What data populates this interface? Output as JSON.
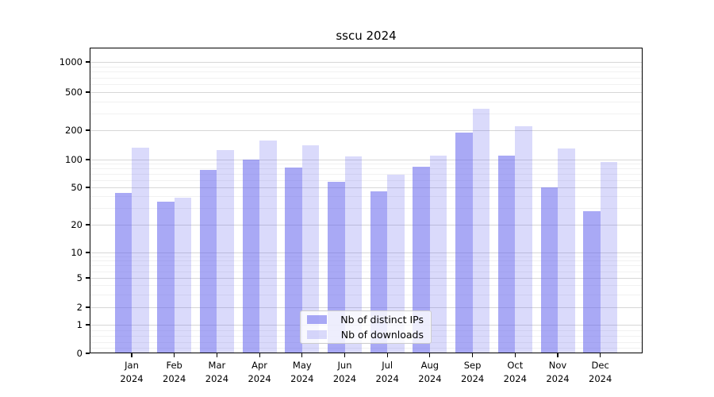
{
  "chart_data": {
    "type": "bar",
    "title": "sscu 2024",
    "year_label": "2024",
    "categories": [
      "Jan",
      "Feb",
      "Mar",
      "Apr",
      "May",
      "Jun",
      "Jul",
      "Aug",
      "Sep",
      "Oct",
      "Nov",
      "Dec"
    ],
    "series": [
      {
        "name": "Nb of distinct IPs",
        "color": "rgba(102,102,238,0.56)",
        "values": [
          44,
          35,
          78,
          100,
          82,
          58,
          45,
          84,
          190,
          110,
          50,
          28
        ]
      },
      {
        "name": "Nb of downloads",
        "color": "rgba(102,102,238,0.24)",
        "values": [
          132,
          39,
          126,
          158,
          141,
          108,
          69,
          110,
          335,
          220,
          131,
          94
        ]
      }
    ],
    "yscale": "symlog",
    "y_ticks": [
      1000,
      500,
      200,
      100,
      50,
      20,
      10,
      5,
      2,
      1,
      0
    ],
    "ylim": [
      0,
      1400
    ],
    "grid": "on",
    "legend_position": "lower center",
    "colors": {
      "bar_dark": "#a9a9f7",
      "bar_light": "#dadafa",
      "grid_major": "#d7d7d7",
      "grid_minor": "#f1f1f1",
      "text": "#000000"
    }
  }
}
